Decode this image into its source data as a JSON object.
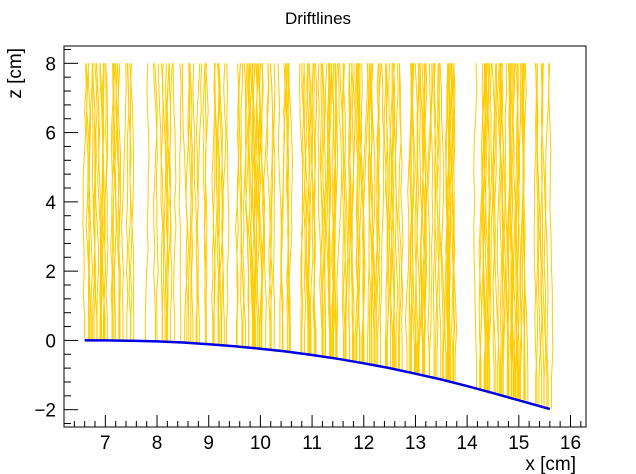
{
  "chart_data": {
    "type": "line",
    "title": "Driftlines",
    "xlabel": "x [cm]",
    "ylabel": "z [cm]",
    "xlim": [
      6.2,
      16.3
    ],
    "ylim": [
      -2.5,
      8.5
    ],
    "x_ticks": [
      7,
      8,
      9,
      10,
      11,
      12,
      13,
      14,
      15,
      16
    ],
    "y_ticks": [
      -2,
      0,
      2,
      4,
      6,
      8
    ],
    "grid": false,
    "legend": "none",
    "driftline_color": "#ffcc00",
    "boundary_color": "#0000e6",
    "driftlines": {
      "z_start": 8,
      "x_range": [
        6.6,
        15.6
      ],
      "count": 260
    },
    "series": [
      {
        "x": [
          6.6,
          7.0,
          7.5,
          8.0,
          8.5,
          9.0,
          9.5,
          10.0,
          10.5,
          11.0,
          11.5,
          12.0,
          12.5,
          13.0,
          13.5,
          14.0,
          14.5,
          15.0,
          15.6
        ],
        "y": [
          0.0,
          0.0,
          -0.01,
          -0.03,
          -0.06,
          -0.11,
          -0.17,
          -0.24,
          -0.32,
          -0.42,
          -0.53,
          -0.66,
          -0.8,
          -0.96,
          -1.13,
          -1.32,
          -1.52,
          -1.73,
          -1.98
        ]
      }
    ]
  }
}
